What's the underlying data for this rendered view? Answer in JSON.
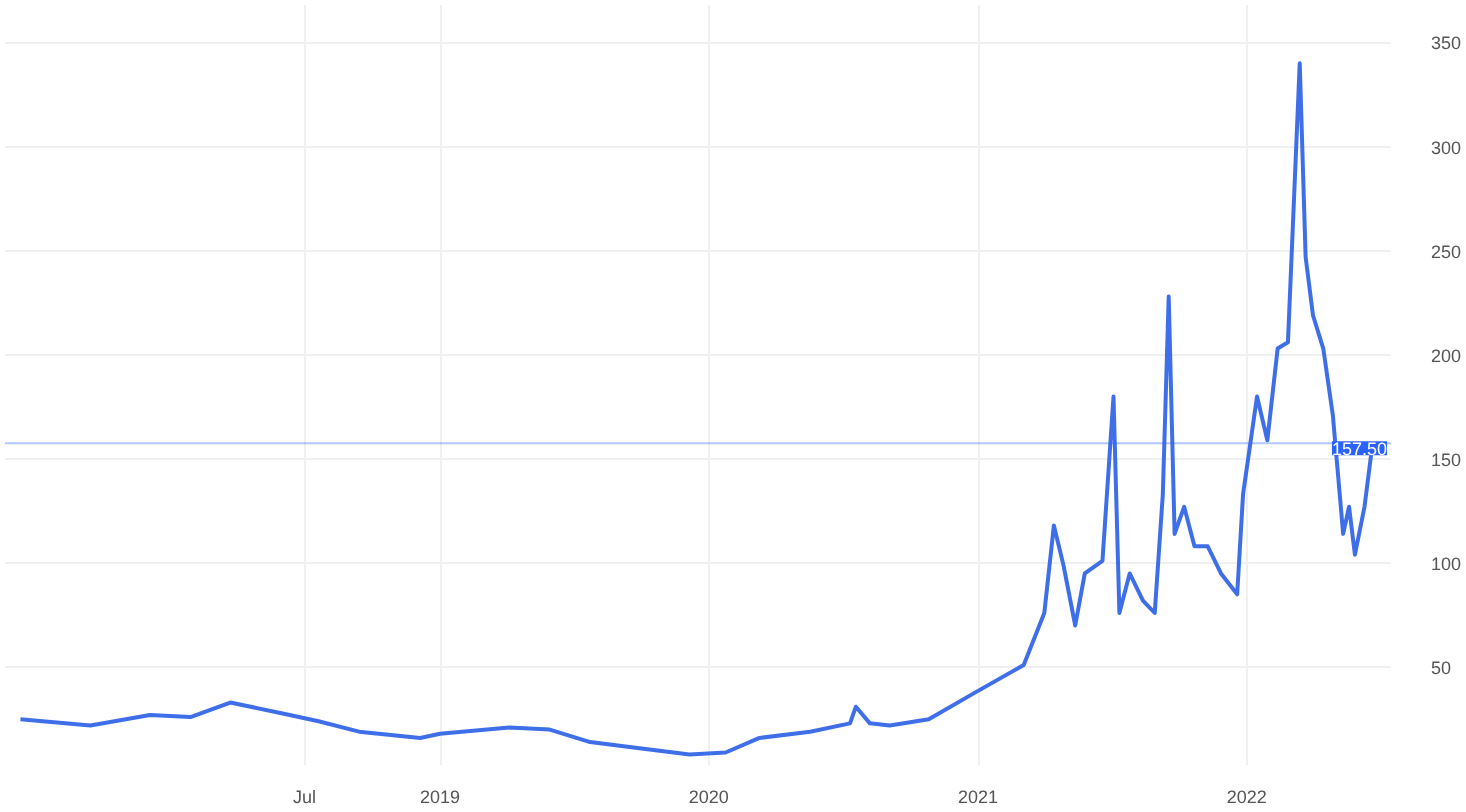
{
  "chart_data": {
    "type": "line",
    "x": [
      "2017-06-10",
      "2017-09-13",
      "2017-12-03",
      "2018-01-27",
      "2018-03-22",
      "2018-05-29",
      "2018-07-20",
      "2018-09-13",
      "2018-12-05",
      "2019-01-01",
      "2019-04-05",
      "2019-05-30",
      "2019-07-24",
      "2019-09-29",
      "2019-12-06",
      "2020-01-24",
      "2020-03-10",
      "2020-05-18",
      "2020-07-11",
      "2020-07-19",
      "2020-08-07",
      "2020-09-03",
      "2020-10-26",
      "2020-12-29",
      "2021-03-04",
      "2021-04-01",
      "2021-04-14",
      "2021-04-27",
      "2021-05-13",
      "2021-05-26",
      "2021-06-19",
      "2021-07-04",
      "2021-07-12",
      "2021-07-26",
      "2021-08-13",
      "2021-08-29",
      "2021-09-09",
      "2021-09-17",
      "2021-09-25",
      "2021-10-08",
      "2021-10-22",
      "2021-11-09",
      "2021-11-27",
      "2021-12-19",
      "2021-12-27",
      "2022-01-15",
      "2022-01-29",
      "2022-02-12",
      "2022-02-26",
      "2022-03-14",
      "2022-03-22",
      "2022-04-01",
      "2022-04-15",
      "2022-04-28",
      "2022-05-12",
      "2022-05-20",
      "2022-05-28",
      "2022-06-10",
      "2022-06-21"
    ],
    "series": [
      {
        "color": "#3f6fe8",
        "values": [
          25,
          22,
          27,
          26,
          33,
          28,
          24,
          19,
          16,
          18,
          21,
          20,
          14,
          11,
          8,
          9,
          16,
          19,
          23,
          31,
          23,
          22,
          25,
          38,
          51,
          76,
          118,
          99,
          70,
          95,
          101,
          180,
          76,
          95,
          82,
          76,
          133,
          228,
          114,
          127,
          108,
          108,
          95,
          85,
          133,
          180,
          159,
          203,
          206,
          340,
          247,
          219,
          203,
          171,
          114,
          127,
          104,
          127,
          157.5
        ]
      }
    ],
    "xlim": [
      "2017-05-20",
      "2022-07-16"
    ],
    "xticks": [
      {
        "value": "2018-07-01",
        "label": "Jul"
      },
      {
        "value": "2019-01-01",
        "label": "2019"
      },
      {
        "value": "2020-01-01",
        "label": "2020"
      },
      {
        "value": "2021-01-01",
        "label": "2021"
      },
      {
        "value": "2022-01-01",
        "label": "2022"
      }
    ],
    "ylim": [
      3,
      368
    ],
    "yticks": [
      50,
      100,
      150,
      200,
      250,
      300,
      350
    ],
    "grid": true,
    "ref_lines": [
      {
        "axis": "y",
        "value": 157.5,
        "label": "157.50",
        "color": "#2962ff"
      }
    ]
  }
}
